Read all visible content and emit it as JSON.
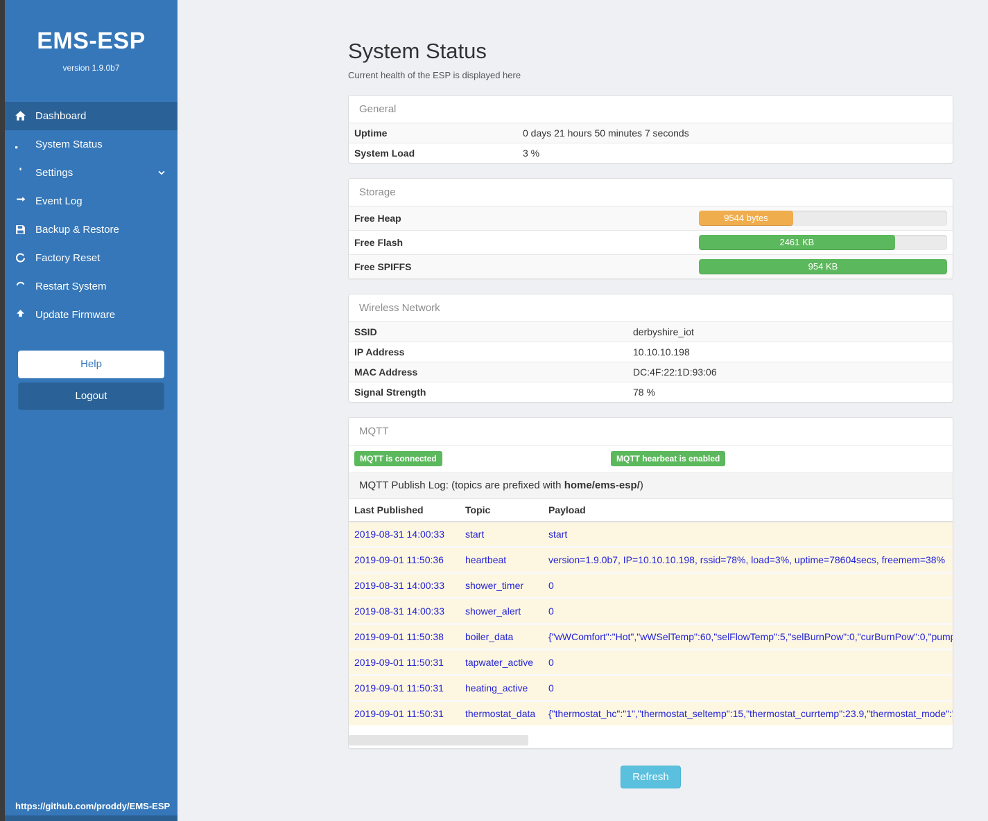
{
  "colors": {
    "sidebar": "#3577b9",
    "sidebar_active": "#2a6196",
    "sidebar_dark": "#2b5f92",
    "badge_green": "#5cb85c",
    "bar_orange": "#f0ad4e",
    "bar_green": "#5cb85c",
    "refresh_blue": "#5bc0de",
    "log_row_bg": "#fdf6e1",
    "log_text": "#2323d7"
  },
  "sidebar": {
    "title": "EMS-ESP",
    "version": "version 1.9.0b7",
    "items": [
      {
        "label": "Dashboard",
        "icon": "home-icon",
        "active": true
      },
      {
        "label": "System Status",
        "icon": "system-status-icon"
      },
      {
        "label": "Settings",
        "icon": "gear-icon",
        "chevron": true
      },
      {
        "label": "Event Log",
        "icon": "exchange-icon"
      },
      {
        "label": "Backup & Restore",
        "icon": "save-icon"
      },
      {
        "label": "Factory Reset",
        "icon": "factory-reset-icon"
      },
      {
        "label": "Restart System",
        "icon": "restart-icon"
      },
      {
        "label": "Update Firmware",
        "icon": "upload-icon"
      }
    ],
    "help_label": "Help",
    "logout_label": "Logout",
    "footer_link": "https://github.com/proddy/EMS-ESP"
  },
  "main": {
    "title": "System Status",
    "subtitle": "Current health of the ESP is displayed here",
    "refresh_label": "Refresh",
    "panels": {
      "general": {
        "title": "General",
        "rows": [
          {
            "label": "Uptime",
            "value": "0 days 21 hours 50 minutes 7 seconds"
          },
          {
            "label": "System Load",
            "value": "3 %"
          }
        ]
      },
      "storage": {
        "title": "Storage",
        "rows": [
          {
            "label": "Free Heap",
            "value": "9544 bytes",
            "percent": 38,
            "color": "#f0ad4e"
          },
          {
            "label": "Free Flash",
            "value": "2461 KB",
            "percent": 79,
            "color": "#5cb85c"
          },
          {
            "label": "Free SPIFFS",
            "value": "954 KB",
            "percent": 100,
            "color": "#5cb85c"
          }
        ]
      },
      "wireless": {
        "title": "Wireless Network",
        "rows": [
          {
            "label": "SSID",
            "value": "derbyshire_iot"
          },
          {
            "label": "IP Address",
            "value": "10.10.10.198"
          },
          {
            "label": "MAC Address",
            "value": "DC:4F:22:1D:93:06"
          },
          {
            "label": "Signal Strength",
            "value": "78 %"
          }
        ]
      },
      "mqtt": {
        "title": "MQTT",
        "badges": [
          "MQTT is connected",
          "MQTT hearbeat is enabled"
        ],
        "publish_log_prefix": "MQTT Publish Log: (topics are prefixed with ",
        "publish_log_bold": "home/ems-esp/",
        "publish_log_suffix": ")",
        "table": {
          "headers": [
            "Last Published",
            "Topic",
            "Payload"
          ],
          "rows": [
            [
              "2019-08-31 14:00:33",
              "start",
              "start"
            ],
            [
              "2019-09-01 11:50:36",
              "heartbeat",
              "version=1.9.0b7, IP=10.10.10.198, rssid=78%, load=3%, uptime=78604secs, freemem=38%"
            ],
            [
              "2019-08-31 14:00:33",
              "shower_timer",
              "0"
            ],
            [
              "2019-08-31 14:00:33",
              "shower_alert",
              "0"
            ],
            [
              "2019-09-01 11:50:38",
              "boiler_data",
              "{\"wWComfort\":\"Hot\",\"wWSelTemp\":60,\"selFlowTemp\":5,\"selBurnPow\":0,\"curBurnPow\":0,\"pump"
            ],
            [
              "2019-09-01 11:50:31",
              "tapwater_active",
              "0"
            ],
            [
              "2019-09-01 11:50:31",
              "heating_active",
              "0"
            ],
            [
              "2019-09-01 11:50:31",
              "thermostat_data",
              "{\"thermostat_hc\":\"1\",\"thermostat_seltemp\":15,\"thermostat_currtemp\":23.9,\"thermostat_mode\":\""
            ]
          ]
        }
      }
    }
  }
}
